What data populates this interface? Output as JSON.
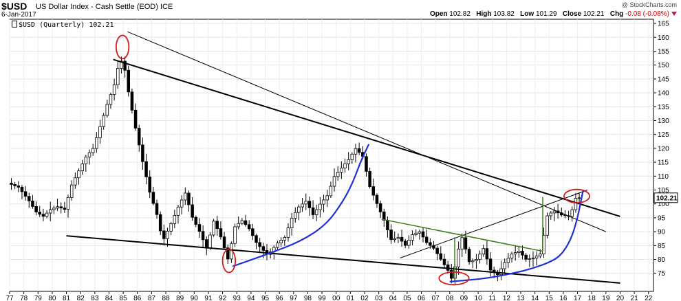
{
  "header": {
    "symbol": "$USD",
    "name": "US Dollar Index - Cash Settle (EOD)",
    "exchange": "ICE",
    "date": "6-Jan-2017",
    "copyright": "@ StockCharts.com",
    "open_label": "Open",
    "open": "102.82",
    "high_label": "High",
    "high": "103.82",
    "low_label": "Low",
    "low": "101.29",
    "close_label": "Close",
    "close": "102.21",
    "chg_label": "Chg",
    "chg": "-0.08 (-0.08%)"
  },
  "legend": {
    "text": "$USD (Quarterly) 102.21"
  },
  "colors": {
    "up": "#ffffff",
    "down": "#000000",
    "resistance": "#000000",
    "support": "#000000",
    "arc": "#1f2fd6",
    "neckline": "#3a7d1a",
    "highlight": "#d11a1a"
  },
  "chart_data": {
    "type": "candlestick",
    "period": "Quarterly",
    "ylim": [
      70,
      165
    ],
    "y_ticks": [
      75,
      80,
      85,
      90,
      95,
      100,
      105,
      110,
      115,
      120,
      125,
      130,
      135,
      140,
      145,
      150,
      155,
      160,
      165
    ],
    "x_range": [
      1977,
      2022
    ],
    "x_tick_labels": [
      "77",
      "78",
      "79",
      "80",
      "81",
      "82",
      "83",
      "84",
      "85",
      "86",
      "87",
      "88",
      "89",
      "90",
      "91",
      "92",
      "93",
      "94",
      "95",
      "96",
      "97",
      "98",
      "99",
      "00",
      "01",
      "02",
      "03",
      "04",
      "05",
      "06",
      "07",
      "08",
      "09",
      "10",
      "11",
      "12",
      "13",
      "14",
      "15",
      "16",
      "17",
      "18",
      "19",
      "20",
      "21",
      "22"
    ],
    "last_value_label": "102.21",
    "anchors": [
      [
        1977.0,
        107.5
      ],
      [
        1977.75,
        106.0
      ],
      [
        1978.5,
        101.0
      ],
      [
        1979.0,
        97.0
      ],
      [
        1979.5,
        95.5
      ],
      [
        1980.0,
        98.0
      ],
      [
        1980.5,
        99.0
      ],
      [
        1981.0,
        98.0
      ],
      [
        1981.5,
        107.0
      ],
      [
        1982.0,
        112.0
      ],
      [
        1982.5,
        117.0
      ],
      [
        1983.0,
        120.0
      ],
      [
        1983.5,
        128.0
      ],
      [
        1984.0,
        136.0
      ],
      [
        1984.5,
        143.0
      ],
      [
        1984.75,
        149.0
      ],
      [
        1985.1,
        152.5
      ],
      [
        1985.5,
        140.0
      ],
      [
        1986.0,
        127.0
      ],
      [
        1986.5,
        115.0
      ],
      [
        1987.0,
        104.0
      ],
      [
        1987.5,
        96.0
      ],
      [
        1987.9,
        86.5
      ],
      [
        1988.5,
        93.0
      ],
      [
        1989.0,
        99.0
      ],
      [
        1989.5,
        104.0
      ],
      [
        1990.0,
        95.0
      ],
      [
        1990.5,
        90.0
      ],
      [
        1991.0,
        84.0
      ],
      [
        1991.5,
        94.0
      ],
      [
        1992.0,
        88.0
      ],
      [
        1992.5,
        80.0
      ],
      [
        1993.0,
        92.0
      ],
      [
        1993.5,
        94.0
      ],
      [
        1994.0,
        91.0
      ],
      [
        1994.5,
        86.0
      ],
      [
        1995.3,
        81.5
      ],
      [
        1996.0,
        86.0
      ],
      [
        1996.5,
        88.0
      ],
      [
        1997.0,
        95.0
      ],
      [
        1997.5,
        99.0
      ],
      [
        1998.0,
        101.0
      ],
      [
        1998.5,
        96.0
      ],
      [
        1999.0,
        100.0
      ],
      [
        1999.5,
        103.0
      ],
      [
        2000.0,
        110.0
      ],
      [
        2000.5,
        113.0
      ],
      [
        2001.0,
        116.0
      ],
      [
        2001.5,
        120.0
      ],
      [
        2002.0,
        117.0
      ],
      [
        2002.5,
        106.0
      ],
      [
        2003.0,
        100.0
      ],
      [
        2003.5,
        94.0
      ],
      [
        2004.0,
        87.0
      ],
      [
        2004.5,
        88.0
      ],
      [
        2005.0,
        85.0
      ],
      [
        2005.5,
        89.0
      ],
      [
        2006.0,
        90.0
      ],
      [
        2006.5,
        86.0
      ],
      [
        2007.0,
        84.0
      ],
      [
        2007.5,
        80.0
      ],
      [
        2008.0,
        76.0
      ],
      [
        2008.3,
        72.5
      ],
      [
        2008.75,
        84.0
      ],
      [
        2009.0,
        88.0
      ],
      [
        2009.5,
        79.0
      ],
      [
        2010.0,
        80.0
      ],
      [
        2010.5,
        84.0
      ],
      [
        2011.0,
        76.0
      ],
      [
        2011.5,
        74.5
      ],
      [
        2012.0,
        79.0
      ],
      [
        2012.5,
        82.0
      ],
      [
        2013.0,
        83.0
      ],
      [
        2013.5,
        80.0
      ],
      [
        2014.0,
        80.5
      ],
      [
        2014.5,
        82.0
      ],
      [
        2015.0,
        96.0
      ],
      [
        2015.5,
        97.5
      ],
      [
        2016.0,
        96.0
      ],
      [
        2016.5,
        95.5
      ],
      [
        2016.8,
        98.5
      ],
      [
        2017.0,
        102.2
      ]
    ],
    "trendlines": [
      {
        "name": "upper-resistance",
        "from": [
          1984.3,
          152.0
        ],
        "to": [
          2020.0,
          95.5
        ],
        "width": 2
      },
      {
        "name": "lower-support",
        "from": [
          1981.0,
          88.5
        ],
        "to": [
          2020.0,
          71.5
        ],
        "width": 2
      },
      {
        "name": "thin-resistance",
        "from": [
          1985.3,
          162.0
        ],
        "to": [
          2019.0,
          90.0
        ],
        "width": 1
      },
      {
        "name": "thin-support",
        "from": [
          2004.5,
          80.5
        ],
        "to": [
          2017.7,
          105.0
        ],
        "width": 1
      },
      {
        "name": "neckline",
        "from": [
          2003.2,
          94.5
        ],
        "to": [
          2014.5,
          83.0
        ],
        "width": 1.5
      }
    ],
    "verticals": [
      {
        "x": 2008.35,
        "from": 72.5,
        "to": 88.0
      },
      {
        "x": 2014.55,
        "from": 83.0,
        "to": 102.5
      }
    ],
    "arcs": [
      {
        "name": "arc-1993-2001",
        "points": [
          [
            1992.7,
            77.5
          ],
          [
            1995.2,
            82.0
          ],
          [
            1997.5,
            86.5
          ],
          [
            1999.3,
            92.5
          ],
          [
            2000.5,
            101.0
          ],
          [
            2001.2,
            108.0
          ],
          [
            2001.7,
            115.0
          ],
          [
            2002.3,
            121.5
          ]
        ]
      },
      {
        "name": "arc-2008-2016",
        "points": [
          [
            2008.0,
            72.0
          ],
          [
            2010.3,
            73.0
          ],
          [
            2012.0,
            74.5
          ],
          [
            2013.7,
            76.5
          ],
          [
            2015.3,
            79.5
          ],
          [
            2016.0,
            82.5
          ],
          [
            2016.6,
            88.0
          ],
          [
            2017.0,
            95.0
          ],
          [
            2017.2,
            100.0
          ],
          [
            2017.4,
            105.0
          ]
        ]
      }
    ],
    "highlights": [
      {
        "name": "peak-1985",
        "cx": 1984.95,
        "cy": 156.5,
        "rx": 0.45,
        "ry": 4.2
      },
      {
        "name": "low-1992",
        "cx": 1992.45,
        "cy": 79.5,
        "rx": 0.45,
        "ry": 4.2
      },
      {
        "name": "low-2008",
        "cx": 2008.3,
        "cy": 73.2,
        "rx": 1.05,
        "ry": 2.3
      },
      {
        "name": "current-2017",
        "cx": 2016.95,
        "cy": 102.8,
        "rx": 0.9,
        "ry": 2.4
      }
    ]
  }
}
